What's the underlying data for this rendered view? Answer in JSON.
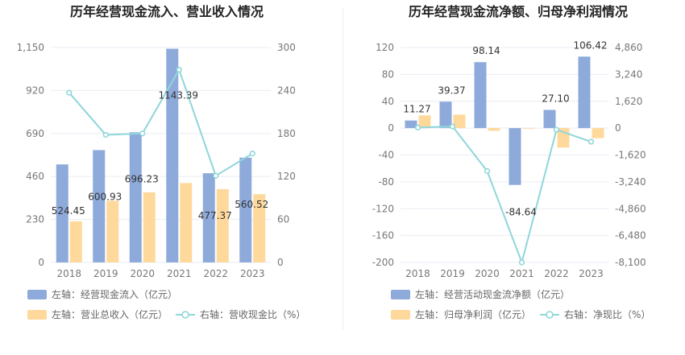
{
  "colors": {
    "bar_blue": "#8eaadb",
    "bar_orange": "#ffd99b",
    "line_cyan": "#8fd6da",
    "grid": "#e9edf5",
    "axis_text": "#777777",
    "title": "#222222",
    "label": "#333333",
    "legend_text": "#666666"
  },
  "chart_data": [
    {
      "type": "bar",
      "title": "历年经营现金流入、营业收入情况",
      "categories": [
        "2018",
        "2019",
        "2020",
        "2021",
        "2022",
        "2023"
      ],
      "left_axis": {
        "ylim": [
          0,
          1150
        ],
        "ticks": [
          0,
          230,
          460,
          690,
          920,
          1150
        ],
        "tick_labels": [
          "0",
          "230",
          "460",
          "690",
          "920",
          "1,150"
        ]
      },
      "right_axis": {
        "ylim": [
          0,
          300
        ],
        "ticks": [
          0,
          60,
          120,
          180,
          240,
          300
        ],
        "tick_labels": [
          "0",
          "60",
          "120",
          "180",
          "240",
          "300"
        ]
      },
      "series": [
        {
          "name": "左轴：经营现金流入（亿元）",
          "axis": "left",
          "kind": "bar",
          "color": "#8eaadb",
          "values": [
            524.45,
            600.93,
            696.23,
            1143.39,
            477.37,
            560.52
          ],
          "labels": [
            "524.45",
            "600.93",
            "696.23",
            "1143.39",
            "477.37",
            "560.52"
          ]
        },
        {
          "name": "左轴：营业总收入（亿元）",
          "axis": "left",
          "kind": "bar",
          "color": "#ffd99b",
          "values": [
            220,
            330,
            375,
            425,
            392,
            365
          ]
        },
        {
          "name": "右轴：营收现金比（%）",
          "axis": "right",
          "kind": "line",
          "color": "#8fd6da",
          "values": [
            237,
            178,
            180,
            269,
            121,
            152
          ]
        }
      ],
      "legend": [
        {
          "label": "左轴：经营现金流入（亿元）",
          "kind": "bar",
          "color": "#8eaadb"
        },
        {
          "label": "左轴：营业总收入（亿元）",
          "kind": "bar",
          "color": "#ffd99b"
        },
        {
          "label": "右轴：营收现金比（%）",
          "kind": "line",
          "color": "#8fd6da"
        }
      ]
    },
    {
      "type": "bar",
      "title": "历年经营现金流净额、归母净利润情况",
      "categories": [
        "2018",
        "2019",
        "2020",
        "2021",
        "2022",
        "2023"
      ],
      "left_axis": {
        "ylim": [
          -200,
          120
        ],
        "ticks": [
          -200,
          -160,
          -120,
          -80,
          -40,
          0,
          40,
          80,
          120
        ],
        "tick_labels": [
          "-200",
          "-160",
          "-120",
          "-80",
          "-40",
          "0",
          "40",
          "80",
          "120"
        ]
      },
      "right_axis": {
        "ylim": [
          -8100,
          4860
        ],
        "ticks": [
          -8100,
          -6480,
          -4860,
          -3240,
          -1620,
          0,
          1620,
          3240,
          4860
        ],
        "tick_labels": [
          "-8,100",
          "-6,480",
          "-4,860",
          "-3,240",
          "-1,620",
          "0",
          "1,620",
          "3,240",
          "4,860"
        ]
      },
      "series": [
        {
          "name": "左轴：经营活动现金流净额（亿元）",
          "axis": "left",
          "kind": "bar",
          "color": "#8eaadb",
          "values": [
            11.27,
            39.37,
            98.14,
            -84.64,
            27.1,
            106.42
          ],
          "labels": [
            "11.27",
            "39.37",
            "98.14",
            "-84.64",
            "27.10",
            "106.42"
          ]
        },
        {
          "name": "左轴：归母净利润（亿元）",
          "axis": "left",
          "kind": "bar",
          "color": "#ffd99b",
          "values": [
            19,
            20,
            -4,
            -1,
            -29,
            -15
          ]
        },
        {
          "name": "右轴：净现比（%）",
          "axis": "right",
          "kind": "line",
          "color": "#8fd6da",
          "values": [
            30,
            100,
            -2590,
            -8100,
            -100,
            -820
          ]
        }
      ],
      "legend": [
        {
          "label": "左轴：经营活动现金流净额（亿元）",
          "kind": "bar",
          "color": "#8eaadb"
        },
        {
          "label": "左轴：归母净利润（亿元）",
          "kind": "bar",
          "color": "#ffd99b"
        },
        {
          "label": "右轴：净现比（%）",
          "kind": "line",
          "color": "#8fd6da"
        }
      ]
    }
  ]
}
